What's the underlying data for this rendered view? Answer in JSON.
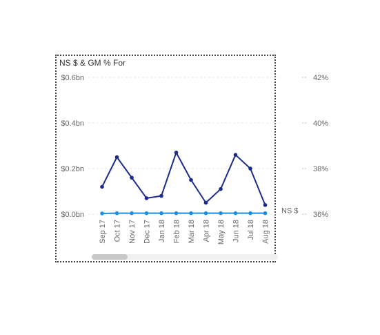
{
  "visual": {
    "title": "NS $ & GM % For"
  },
  "colors": {
    "gm_line": "#1b2a8c",
    "ns_line": "#1a8fe6",
    "grid": "#e6e6e6",
    "border": "#444444"
  },
  "chart_data": {
    "type": "line",
    "title": "NS $ & GM % For",
    "categories": [
      "Sep 17",
      "Oct 17",
      "Nov 17",
      "Dec 17",
      "Jan 18",
      "Feb 18",
      "Mar 18",
      "Apr 18",
      "May 18",
      "Jun 18",
      "Jul 18",
      "Aug 18"
    ],
    "y_left": {
      "ticks": [
        "$0.0bn",
        "$0.2bn",
        "$0.4bn",
        "$0.6bn"
      ],
      "range": [
        0,
        0.6
      ],
      "unit": "bn"
    },
    "y_right": {
      "ticks": [
        "36%",
        "38%",
        "40%",
        "42%"
      ],
      "range": [
        36,
        42
      ],
      "unit": "%"
    },
    "series": [
      {
        "name": "NS $",
        "axis": "left",
        "color": "#1a8fe6",
        "values": [
          0.003,
          0.004,
          0.004,
          0.004,
          0.004,
          0.004,
          0.004,
          0.004,
          0.004,
          0.004,
          0.004,
          0.004
        ]
      },
      {
        "axis": "right",
        "color": "#1b2a8c",
        "values": [
          37.2,
          38.5,
          37.6,
          36.7,
          36.8,
          38.7,
          37.5,
          36.5,
          37.1,
          38.6,
          38.0,
          36.4
        ]
      }
    ],
    "end_label": "NS $",
    "grid": true
  }
}
